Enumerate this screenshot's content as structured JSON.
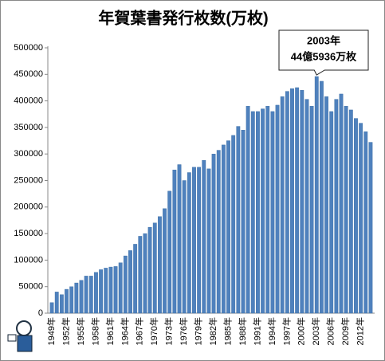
{
  "chart_data": {
    "type": "bar",
    "title": "年賀葉書発行枚数(万枚)",
    "categories": [
      "1949年",
      null,
      null,
      "1952年",
      null,
      null,
      "1955年",
      null,
      null,
      "1958年",
      null,
      null,
      "1961年",
      null,
      null,
      "1964年",
      null,
      null,
      "1967年",
      null,
      null,
      "1970年",
      null,
      null,
      "1973年",
      null,
      null,
      "1976年",
      null,
      null,
      "1979年",
      null,
      null,
      "1982年",
      null,
      null,
      "1985年",
      null,
      null,
      "1988年",
      null,
      null,
      "1991年",
      null,
      null,
      "1994年",
      null,
      null,
      "1997年",
      null,
      null,
      "2000年",
      null,
      null,
      "2003年",
      null,
      null,
      "2006年",
      null,
      null,
      "2009年",
      null,
      null,
      "2012年",
      null,
      null
    ],
    "values": [
      20000,
      40000,
      35000,
      45000,
      50000,
      57000,
      62000,
      70000,
      70000,
      77000,
      82000,
      85000,
      87000,
      88000,
      95000,
      108000,
      118000,
      130000,
      145000,
      150000,
      162000,
      170000,
      182000,
      197000,
      230000,
      270000,
      280000,
      250000,
      265000,
      275000,
      275000,
      288000,
      272000,
      300000,
      307000,
      317000,
      325000,
      335000,
      352000,
      345000,
      390000,
      380000,
      380000,
      385000,
      390000,
      380000,
      392000,
      408000,
      418000,
      423000,
      425000,
      420000,
      403000,
      390000,
      445936,
      437000,
      408000,
      380000,
      403000,
      413000,
      390000,
      383000,
      367000,
      358000,
      342000,
      322000
    ],
    "color": "#4f81bd",
    "annotation": [
      "2003年",
      "44億5936万枚"
    ],
    "ylim": [
      0,
      500000
    ],
    "yticks": [
      0,
      50000,
      100000,
      150000,
      200000,
      250000,
      300000,
      350000,
      400000,
      450000,
      500000
    ],
    "grid": false
  }
}
